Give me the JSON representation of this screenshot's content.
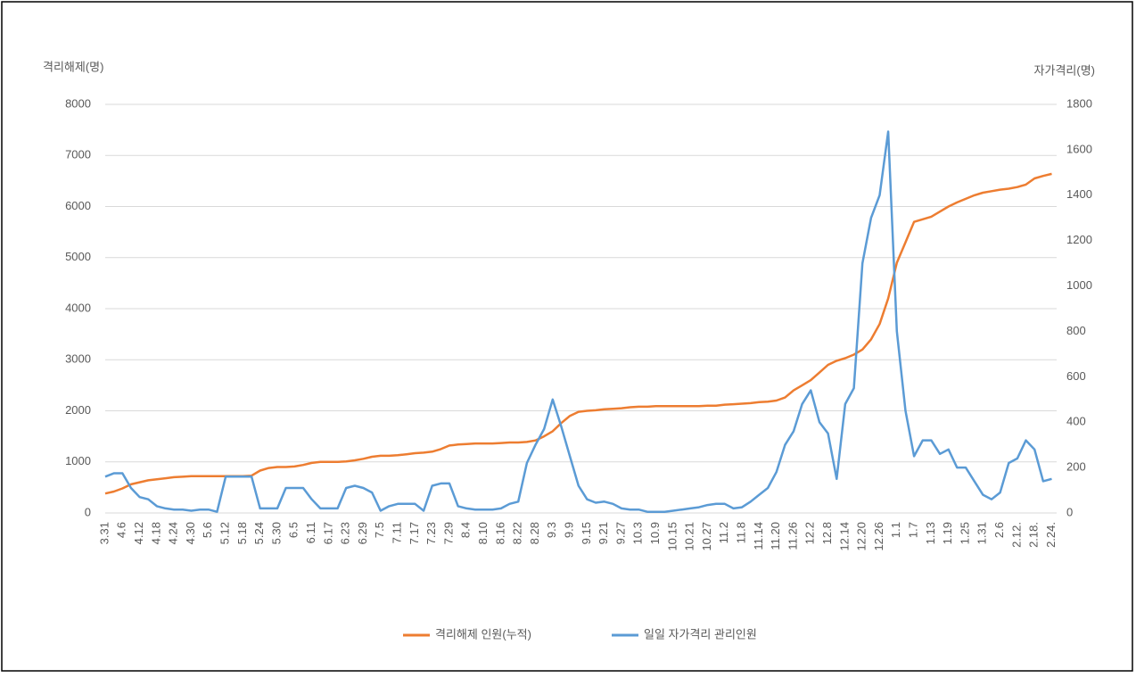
{
  "chart_data": {
    "type": "line",
    "y_label": "격리해제(명)",
    "y2_label": "자가격리(명)",
    "categories": [
      "3.31",
      null,
      "4.6",
      null,
      "4.12",
      null,
      "4.18",
      null,
      "4.24",
      null,
      "4.30",
      null,
      "5.6",
      null,
      "5.12",
      null,
      "5.18",
      null,
      "5.24",
      null,
      "5.30",
      null,
      "6.5",
      null,
      "6.11",
      null,
      "6.17",
      null,
      "6.23",
      null,
      "6.29",
      null,
      "7.5",
      null,
      "7.11",
      null,
      "7.17",
      null,
      "7.23",
      null,
      "7.29",
      null,
      "8.4",
      null,
      "8.10",
      null,
      "8.16",
      null,
      "8.22",
      null,
      "8.28",
      null,
      "9.3",
      null,
      "9.9",
      null,
      "9.15",
      null,
      "9.21",
      null,
      "9.27",
      null,
      "10.3",
      null,
      "10.9",
      null,
      "10.15",
      null,
      "10.21",
      null,
      "10.27",
      null,
      "11.2",
      null,
      "11.8",
      null,
      "11.14",
      null,
      "11.20",
      null,
      "11.26",
      null,
      "12.2",
      null,
      "12.8",
      null,
      "12.14",
      null,
      "12.20",
      null,
      "12.26",
      null,
      "1.1",
      null,
      "1.7",
      null,
      "1.13",
      null,
      "1.19",
      null,
      "1.25",
      null,
      "1.31",
      null,
      "2.6",
      null,
      "2.12.",
      null,
      "2.18.",
      null,
      "2.24."
    ],
    "series": [
      {
        "name": "격리해제 인원(누적)",
        "color": "#ed7d31",
        "values": [
          380,
          420,
          480,
          560,
          600,
          640,
          660,
          680,
          700,
          710,
          720,
          720,
          720,
          720,
          720,
          720,
          720,
          730,
          830,
          880,
          900,
          900,
          910,
          940,
          980,
          1000,
          1000,
          1000,
          1010,
          1030,
          1060,
          1100,
          1120,
          1120,
          1130,
          1150,
          1170,
          1180,
          1200,
          1250,
          1320,
          1340,
          1350,
          1360,
          1360,
          1360,
          1370,
          1380,
          1380,
          1390,
          1420,
          1500,
          1600,
          1760,
          1900,
          1980,
          2000,
          2010,
          2030,
          2040,
          2050,
          2070,
          2080,
          2080,
          2090,
          2090,
          2090,
          2090,
          2090,
          2090,
          2100,
          2100,
          2120,
          2130,
          2140,
          2150,
          2170,
          2180,
          2200,
          2260,
          2400,
          2500,
          2600,
          2750,
          2900,
          2980,
          3030,
          3100,
          3200,
          3400,
          3700,
          4200,
          4900,
          5300,
          5700,
          5750,
          5800,
          5900,
          6000,
          6080,
          6150,
          6220,
          6270,
          6300,
          6330,
          6350,
          6380,
          6430,
          6550,
          6600,
          6640
        ]
      },
      {
        "name": "일일 자가격리 관리인원",
        "color": "#5b9bd5",
        "axis": "y2",
        "values": [
          160,
          175,
          175,
          110,
          70,
          60,
          30,
          20,
          15,
          15,
          10,
          15,
          15,
          5,
          160,
          160,
          160,
          160,
          20,
          20,
          20,
          110,
          110,
          110,
          60,
          20,
          20,
          20,
          110,
          120,
          110,
          90,
          10,
          30,
          40,
          40,
          40,
          10,
          120,
          130,
          130,
          30,
          20,
          15,
          15,
          15,
          20,
          40,
          50,
          220,
          300,
          370,
          500,
          380,
          250,
          120,
          60,
          45,
          50,
          40,
          20,
          15,
          15,
          5,
          5,
          5,
          10,
          15,
          20,
          25,
          35,
          40,
          40,
          20,
          25,
          50,
          80,
          110,
          180,
          300,
          360,
          480,
          540,
          400,
          350,
          150,
          480,
          550,
          1100,
          1300,
          1400,
          1680,
          800,
          450,
          250,
          320,
          320,
          260,
          280,
          200,
          200,
          140,
          80,
          60,
          90,
          220,
          240,
          320,
          280,
          140,
          150
        ]
      }
    ],
    "ylim": [
      0,
      8000
    ],
    "yticks": [
      0,
      1000,
      2000,
      3000,
      4000,
      5000,
      6000,
      7000,
      8000
    ],
    "y2lim": [
      0,
      1800
    ],
    "y2ticks": [
      0,
      200,
      400,
      600,
      800,
      1000,
      1200,
      1400,
      1600,
      1800
    ],
    "grid": true,
    "legend": "bottom"
  }
}
